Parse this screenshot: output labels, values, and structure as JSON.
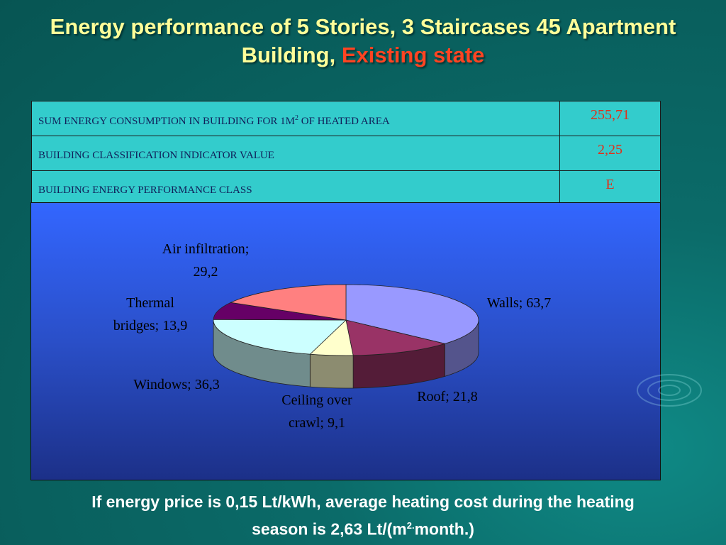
{
  "title": {
    "line1": "Energy performance of 5 Stories, 3 Staircases 45 Apartment",
    "line2_plain": "Building,",
    "line2_highlight": "Existing state"
  },
  "table": {
    "rows": [
      {
        "label_part1": "SUM ENERGY CONSUMPTION IN BUILDING FOR 1M",
        "label_sup": "2",
        "label_part2": " OF HEATED AREA",
        "value": "255,71"
      },
      {
        "label_part1": "BUILDING CLASSIFICATION INDICATOR VALUE",
        "label_sup": "",
        "label_part2": "",
        "value": "2,25"
      },
      {
        "label_part1": "BUILDING ENERGY PERFORMANCE CLASS",
        "label_sup": "",
        "label_part2": "",
        "value": "E"
      }
    ]
  },
  "chart_data": {
    "type": "pie",
    "title": "",
    "categories": [
      "Walls",
      "Roof",
      "Ceiling over crawl",
      "Windows",
      "Thermal bridges",
      "Air infiltration"
    ],
    "values": [
      63.7,
      21.8,
      9.1,
      36.3,
      13.9,
      29.2
    ],
    "labels": [
      {
        "lines": [
          "Walls; 63,7"
        ]
      },
      {
        "lines": [
          "Roof; 21,8"
        ]
      },
      {
        "lines": [
          "Ceiling over",
          "crawl; 9,1"
        ]
      },
      {
        "lines": [
          "Windows; 36,3"
        ]
      },
      {
        "lines": [
          "Thermal",
          "bridges; 13,9"
        ]
      },
      {
        "lines": [
          "Air infiltration;",
          "29,2"
        ]
      }
    ],
    "colors": [
      "#9999ff",
      "#993366",
      "#ffffcc",
      "#ccffff",
      "#660066",
      "#ff8080"
    ],
    "style": "3d"
  },
  "bottom": {
    "part1": "If energy price is 0,15 Lt/kWh, average heating cost during the heating",
    "part2": "season is 2,63 Lt/(m",
    "sup": "2.",
    "part3": "month.)"
  }
}
